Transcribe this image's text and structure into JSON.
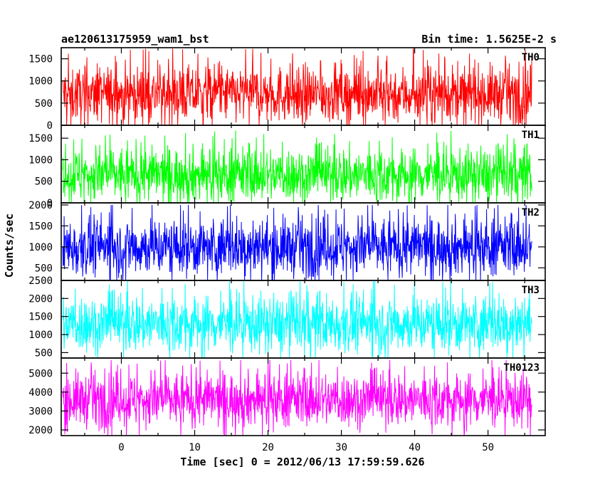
{
  "chart_data": {
    "type": "line",
    "title": "ae120613175959_wam1_bst",
    "bin_time": "Bin time: 1.5625E-2 s",
    "xlabel": "Time [sec] 0 = 2012/06/13 17:59:59.626",
    "ylabel": "Counts/sec",
    "xlim": [
      -8.2,
      57.8
    ],
    "x_data_range": [
      -8.0,
      56.0
    ],
    "x_ticks": [
      0,
      10,
      20,
      30,
      40,
      50
    ],
    "x_tick_labels": [
      "0",
      "10",
      "20",
      "30",
      "40",
      "50"
    ],
    "grid": false,
    "panels": [
      {
        "name": "TH0",
        "color": "#ff0000",
        "ylim": [
          0,
          1750
        ],
        "y_ticks": [
          0,
          500,
          1000,
          1500
        ],
        "y_tick_labels": [
          "0",
          "500",
          "1000",
          "1500"
        ],
        "mean": 700,
        "typical_range": [
          150,
          1300
        ],
        "max": 1750
      },
      {
        "name": "TH1",
        "color": "#00ff00",
        "ylim": [
          0,
          1800
        ],
        "y_ticks": [
          0,
          500,
          1000,
          1500
        ],
        "y_tick_labels": [
          "0",
          "500",
          "1000",
          "1500"
        ],
        "mean": 650,
        "typical_range": [
          100,
          1250
        ],
        "max": 1750
      },
      {
        "name": "TH2",
        "color": "#0000ff",
        "ylim": [
          200,
          2050
        ],
        "y_ticks": [
          500,
          1000,
          1500,
          2000
        ],
        "y_tick_labels": [
          "500",
          "1000",
          "1500",
          "2000"
        ],
        "mean": 1000,
        "typical_range": [
          400,
          1650
        ],
        "max": 2000
      },
      {
        "name": "TH3",
        "color": "#00ffff",
        "ylim": [
          350,
          2500
        ],
        "y_ticks": [
          500,
          1000,
          1500,
          2000,
          2500
        ],
        "y_tick_labels": [
          "500",
          "1000",
          "1500",
          "2000",
          "2500"
        ],
        "mean": 1300,
        "typical_range": [
          600,
          2050
        ],
        "max": 2500
      },
      {
        "name": "TH0123",
        "color": "#ff00ff",
        "ylim": [
          1700,
          5800
        ],
        "y_ticks": [
          2000,
          3000,
          4000,
          5000
        ],
        "y_tick_labels": [
          "2000",
          "3000",
          "4000",
          "5000"
        ],
        "mean": 3600,
        "typical_range": [
          2400,
          5000
        ],
        "max": 5700
      }
    ]
  }
}
